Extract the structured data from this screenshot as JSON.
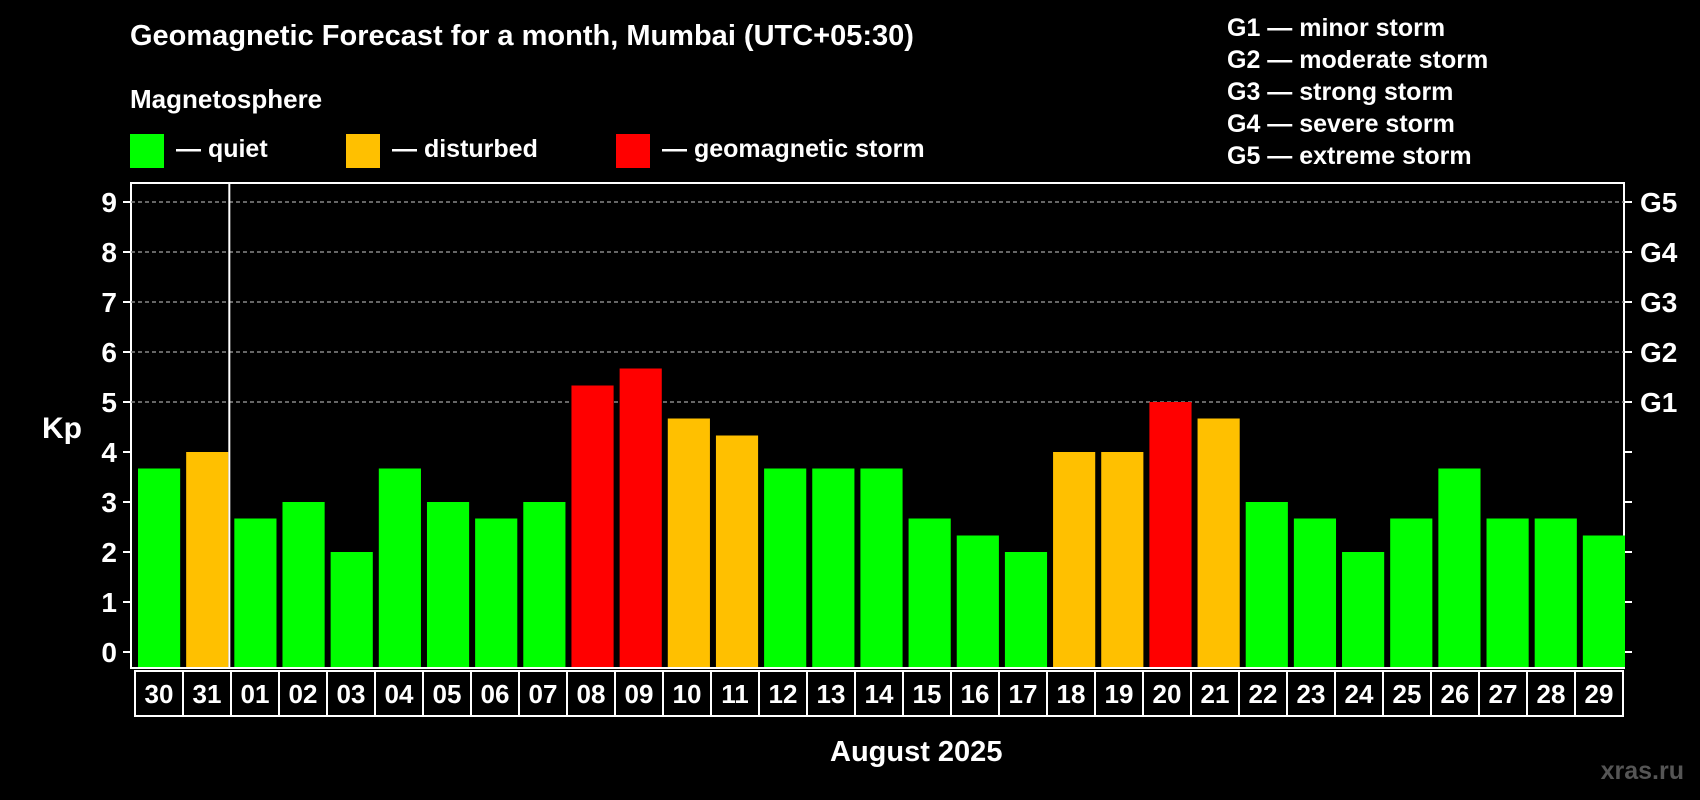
{
  "title": "Geomagnetic Forecast for a month, Mumbai (UTC+05:30)",
  "magnetosphere": {
    "heading": "Magnetosphere",
    "legend": [
      {
        "label": "— quiet",
        "color": "#00ff00"
      },
      {
        "label": "— disturbed",
        "color": "#ffc000"
      },
      {
        "label": "— geomagnetic storm",
        "color": "#ff0000"
      }
    ]
  },
  "storm_scale": [
    "G1 — minor storm",
    "G2 — moderate storm",
    "G3 — strong storm",
    "G4 — severe storm",
    "G5 — extreme storm"
  ],
  "watermark": "xras.ru",
  "colors": {
    "quiet": "#00ff00",
    "disturbed": "#ffc000",
    "storm": "#ff0000",
    "background": "#000000",
    "foreground": "#ffffff",
    "grid": "#888888"
  },
  "chart_data": {
    "type": "bar",
    "title": "Geomagnetic Forecast for a month, Mumbai (UTC+05:30)",
    "xlabel": "August 2025",
    "ylabel": "Kp",
    "ylim": [
      0,
      9
    ],
    "yticks": [
      "0",
      "1",
      "2",
      "3",
      "4",
      "5",
      "6",
      "7",
      "8",
      "9"
    ],
    "right_axis_labels": [
      {
        "value": 5,
        "label": "G1"
      },
      {
        "value": 6,
        "label": "G2"
      },
      {
        "value": 7,
        "label": "G3"
      },
      {
        "value": 8,
        "label": "G4"
      },
      {
        "value": 9,
        "label": "G5"
      }
    ],
    "grid": "dashed horizontal at Kp 5 to 9",
    "month_divider_after": "31",
    "categories": [
      "30",
      "31",
      "01",
      "02",
      "03",
      "04",
      "05",
      "06",
      "07",
      "08",
      "09",
      "10",
      "11",
      "12",
      "13",
      "14",
      "15",
      "16",
      "17",
      "18",
      "19",
      "20",
      "21",
      "22",
      "23",
      "24",
      "25",
      "26",
      "27",
      "28",
      "29"
    ],
    "values": [
      3.67,
      4,
      2.67,
      3,
      2,
      3.67,
      3,
      2.67,
      3,
      5.33,
      5.67,
      4.67,
      4.33,
      3.67,
      3.67,
      3.67,
      2.67,
      2.33,
      2,
      4,
      4,
      5,
      4.67,
      3,
      2.67,
      2,
      2.67,
      3.67,
      2.67,
      2.67,
      2.33
    ],
    "status": [
      "quiet",
      "disturbed",
      "quiet",
      "quiet",
      "quiet",
      "quiet",
      "quiet",
      "quiet",
      "quiet",
      "storm",
      "storm",
      "disturbed",
      "disturbed",
      "quiet",
      "quiet",
      "quiet",
      "quiet",
      "quiet",
      "quiet",
      "disturbed",
      "disturbed",
      "storm",
      "disturbed",
      "quiet",
      "quiet",
      "quiet",
      "quiet",
      "quiet",
      "quiet",
      "quiet",
      "quiet"
    ]
  }
}
